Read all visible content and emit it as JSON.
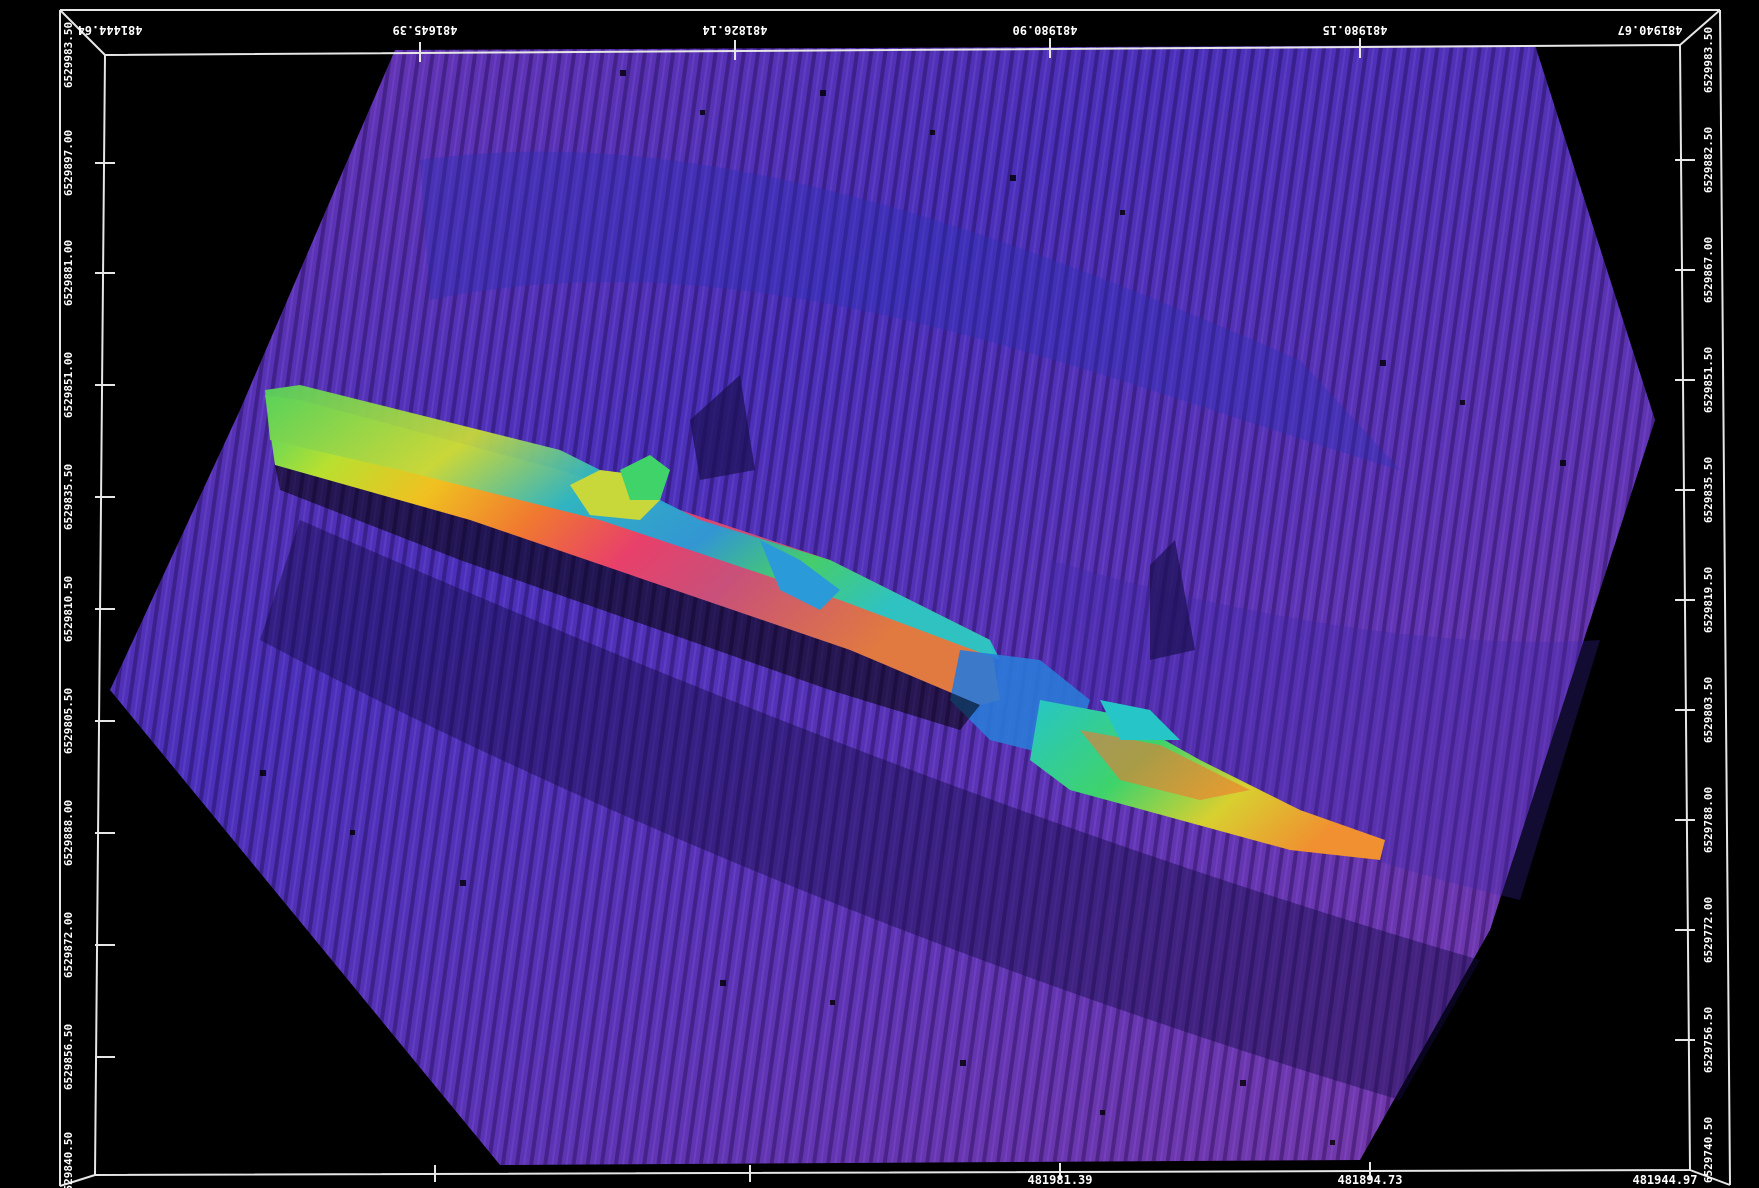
{
  "scene": {
    "background_color": "#000000",
    "frame_color": "#e6e6e6",
    "seafloor_colors": [
      "#4a2bb0",
      "#5a35b8",
      "#6a3ab0",
      "#7a3aa8"
    ],
    "hull_colors": [
      "#26c6c8",
      "#3fd36a",
      "#b8e030",
      "#f0c020",
      "#f07830",
      "#e8406a",
      "#c03a7a"
    ]
  },
  "axis_labels": {
    "top": [
      "481444.64",
      "481645.39",
      "481826.14",
      "481980.90",
      "481980.15",
      "481940.67"
    ],
    "bottom": [
      "481981.39",
      "481894.73",
      "481944.97"
    ],
    "left": [
      "6529983.50",
      "6529897.00",
      "6529881.00",
      "6529851.00",
      "6529835.50",
      "6529810.50",
      "6529805.50",
      "6529888.00",
      "6529872.00",
      "6529856.50",
      "6529840.50"
    ],
    "right": [
      "6529983.50",
      "6529882.50",
      "6529867.00",
      "6529851.50",
      "6529835.50",
      "6529819.50",
      "6529803.50",
      "6529788.00",
      "6529772.00",
      "6529756.50",
      "6529740.50"
    ]
  }
}
